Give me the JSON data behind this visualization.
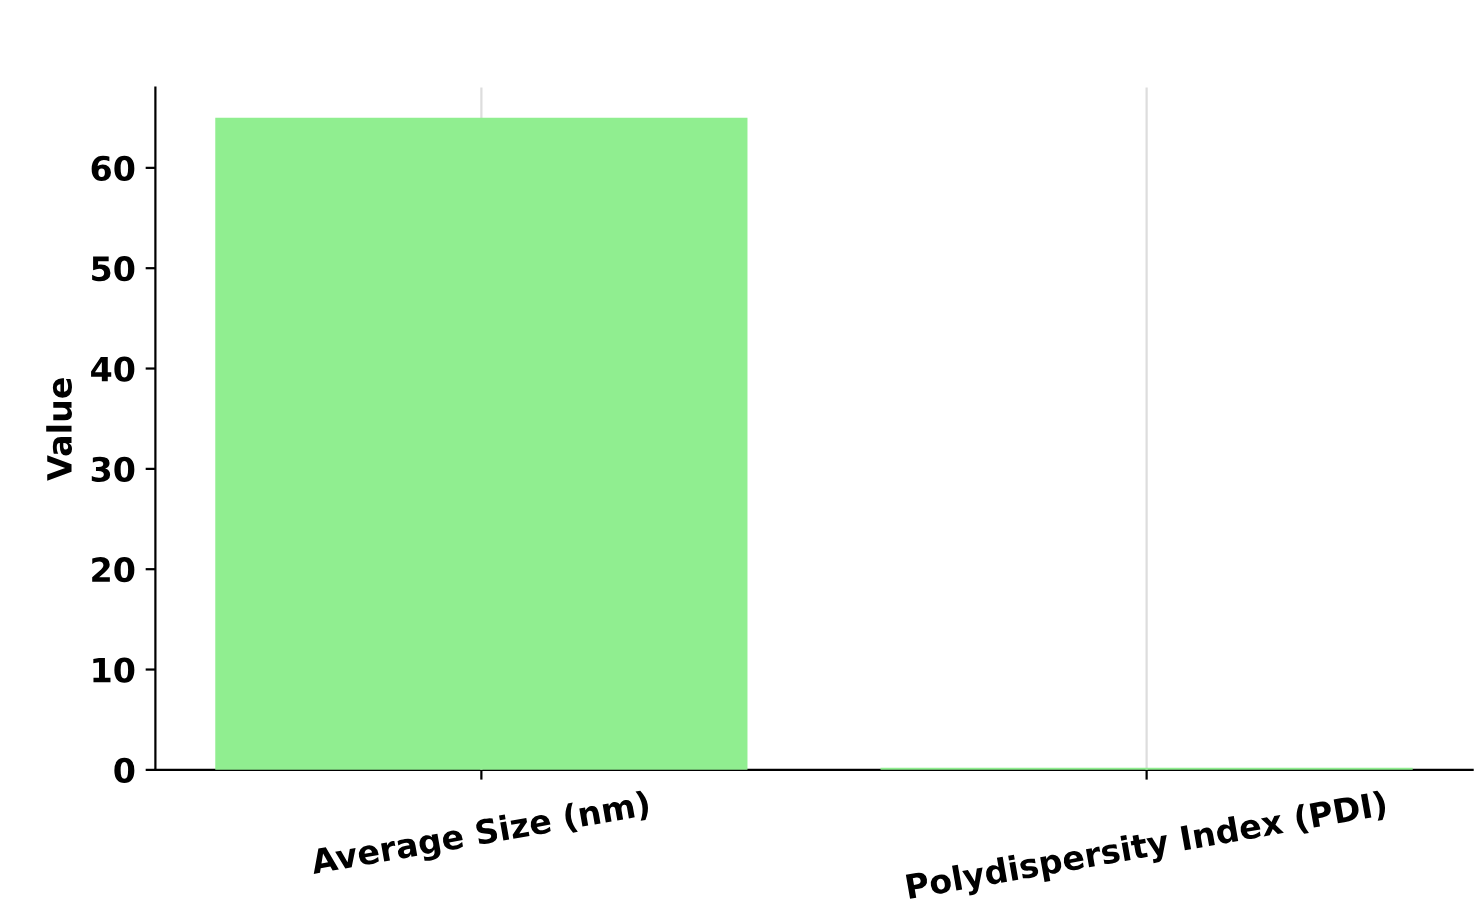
{
  "chart_data": {
    "type": "bar",
    "ylabel": "Value",
    "categories": [
      "Average Size (nm)",
      "Polydispersity Index (PDI)"
    ],
    "values": [
      65,
      0.2
    ],
    "color": "#90ee90",
    "ylim": [
      0,
      68
    ],
    "yticks": [
      0,
      10,
      20,
      30,
      40,
      50,
      60
    ],
    "grid": "x"
  }
}
